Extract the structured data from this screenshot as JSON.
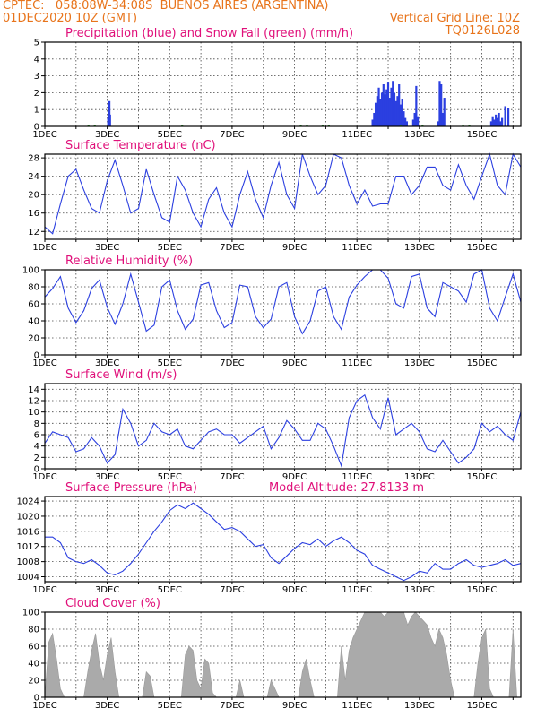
{
  "header": {
    "line1": "CPTEC:   058:08W-34:08S  BUENOS AIRES (ARGENTINA)",
    "line2_left": "01DEC2020 10Z (GMT)",
    "line2_right": "Vertical Grid Line: 10Z",
    "code": "TQ0126L028"
  },
  "colors": {
    "header": "#e8741b",
    "panel_title": "#e0107a",
    "series": "#2b3fe0",
    "snow": "#2ca02c",
    "cloud": "#aaaaaa"
  },
  "day_labels": [
    "1DEC",
    "3DEC",
    "5DEC",
    "7DEC",
    "9DEC",
    "11DEC",
    "13DEC",
    "15DEC"
  ],
  "chart_data": [
    {
      "type": "bar",
      "title": "Precipitation (blue) and Snow Fall (green) (mm/h)",
      "ylim": [
        0,
        5
      ],
      "yticks": [
        0,
        1,
        2,
        3,
        4,
        5
      ],
      "x_unit": "days since 01DEC2020 10Z",
      "series": [
        {
          "name": "Precipitation",
          "color": "#2b3fe0",
          "points": [
            [
              2.03,
              0.5
            ],
            [
              2.05,
              0.9
            ],
            [
              2.07,
              1.5
            ],
            [
              2.09,
              0.7
            ],
            [
              10.5,
              0.4
            ],
            [
              10.55,
              0.8
            ],
            [
              10.6,
              1.4
            ],
            [
              10.65,
              1.8
            ],
            [
              10.7,
              2.3
            ],
            [
              10.75,
              1.6
            ],
            [
              10.8,
              2.0
            ],
            [
              10.85,
              2.5
            ],
            [
              10.9,
              1.9
            ],
            [
              10.95,
              2.2
            ],
            [
              11.0,
              2.6
            ],
            [
              11.05,
              1.7
            ],
            [
              11.1,
              2.3
            ],
            [
              11.15,
              2.7
            ],
            [
              11.2,
              2.0
            ],
            [
              11.25,
              1.5
            ],
            [
              11.3,
              1.8
            ],
            [
              11.35,
              2.5
            ],
            [
              11.4,
              1.3
            ],
            [
              11.45,
              1.6
            ],
            [
              11.5,
              0.9
            ],
            [
              11.55,
              0.5
            ],
            [
              11.6,
              0.3
            ],
            [
              11.8,
              0.4
            ],
            [
              11.85,
              0.8
            ],
            [
              11.9,
              2.4
            ],
            [
              11.95,
              0.6
            ],
            [
              12.6,
              0.3
            ],
            [
              12.65,
              2.7
            ],
            [
              12.7,
              2.5
            ],
            [
              12.75,
              0.8
            ],
            [
              12.8,
              1.7
            ],
            [
              14.3,
              0.3
            ],
            [
              14.35,
              0.6
            ],
            [
              14.4,
              0.4
            ],
            [
              14.45,
              0.7
            ],
            [
              14.5,
              0.5
            ],
            [
              14.55,
              0.8
            ],
            [
              14.6,
              0.3
            ],
            [
              14.65,
              0.5
            ],
            [
              14.75,
              1.2
            ],
            [
              14.85,
              1.1
            ]
          ]
        },
        {
          "name": "Snow Fall",
          "color": "#2ca02c",
          "points": [
            [
              1.4,
              0.05
            ],
            [
              1.6,
              0.05
            ],
            [
              4.4,
              0.05
            ],
            [
              8.2,
              0.05
            ],
            [
              8.4,
              0.05
            ],
            [
              8.9,
              0.05
            ],
            [
              9.1,
              0.05
            ],
            [
              11.4,
              0.05
            ],
            [
              12.1,
              0.05
            ],
            [
              13.4,
              0.05
            ],
            [
              13.6,
              0.05
            ]
          ]
        }
      ]
    },
    {
      "type": "line",
      "title": "Surface Temperature (nC)",
      "ylim": [
        10.3,
        28.8
      ],
      "yticks": [
        12,
        16,
        20,
        24,
        28
      ],
      "x": [
        0,
        0.25,
        0.5,
        0.75,
        1,
        1.25,
        1.5,
        1.75,
        2,
        2.25,
        2.5,
        2.75,
        3,
        3.25,
        3.5,
        3.75,
        4,
        4.25,
        4.5,
        4.75,
        5,
        5.25,
        5.5,
        5.75,
        6,
        6.25,
        6.5,
        6.75,
        7,
        7.25,
        7.5,
        7.75,
        8,
        8.25,
        8.5,
        8.75,
        9,
        9.25,
        9.5,
        9.75,
        10,
        10.25,
        10.5,
        10.75,
        11,
        11.25,
        11.5,
        11.75,
        12,
        12.25,
        12.5,
        12.75,
        13,
        13.25,
        13.5,
        13.75,
        14,
        14.25,
        14.5,
        14.75,
        15,
        15.25
      ],
      "values": [
        13,
        11.5,
        18,
        24,
        25.5,
        21,
        17,
        16,
        23,
        27.5,
        22,
        16,
        17,
        25.5,
        20,
        15,
        14,
        24,
        21,
        16,
        13,
        19,
        21.5,
        16,
        13,
        20,
        25,
        19,
        15,
        22,
        27,
        20,
        17,
        28.8,
        24,
        20,
        22,
        28.8,
        28,
        22,
        18,
        21,
        17.5,
        18,
        18,
        24,
        24,
        20,
        22,
        26,
        26,
        22,
        21,
        26.5,
        22,
        19,
        24,
        28.8,
        22,
        20,
        28.8,
        26
      ]
    },
    {
      "type": "line",
      "title": "Relative Humidity (%)",
      "ylim": [
        0,
        100
      ],
      "yticks": [
        0,
        20,
        40,
        60,
        80,
        100
      ],
      "x": [
        0,
        0.25,
        0.5,
        0.75,
        1,
        1.25,
        1.5,
        1.75,
        2,
        2.25,
        2.5,
        2.75,
        3,
        3.25,
        3.5,
        3.75,
        4,
        4.25,
        4.5,
        4.75,
        5,
        5.25,
        5.5,
        5.75,
        6,
        6.25,
        6.5,
        6.75,
        7,
        7.25,
        7.5,
        7.75,
        8,
        8.25,
        8.5,
        8.75,
        9,
        9.25,
        9.5,
        9.75,
        10,
        10.25,
        10.5,
        10.75,
        11,
        11.25,
        11.5,
        11.75,
        12,
        12.25,
        12.5,
        12.75,
        13,
        13.25,
        13.5,
        13.75,
        14,
        14.25,
        14.5,
        14.75,
        15,
        15.25
      ],
      "values": [
        68,
        78,
        92,
        55,
        38,
        52,
        78,
        88,
        56,
        36,
        60,
        95,
        62,
        28,
        35,
        80,
        88,
        52,
        30,
        42,
        82,
        85,
        52,
        32,
        38,
        82,
        80,
        45,
        32,
        42,
        80,
        85,
        45,
        25,
        40,
        75,
        80,
        45,
        30,
        68,
        82,
        92,
        100,
        100,
        90,
        60,
        55,
        92,
        95,
        55,
        45,
        85,
        80,
        75,
        62,
        95,
        100,
        55,
        40,
        68,
        95,
        62
      ]
    },
    {
      "type": "line",
      "title": "Surface Wind (m/s)",
      "ylim": [
        0,
        15
      ],
      "yticks": [
        0,
        2,
        4,
        6,
        8,
        10,
        12,
        14
      ],
      "x": [
        0,
        0.25,
        0.5,
        0.75,
        1,
        1.25,
        1.5,
        1.75,
        2,
        2.25,
        2.5,
        2.75,
        3,
        3.25,
        3.5,
        3.75,
        4,
        4.25,
        4.5,
        4.75,
        5,
        5.25,
        5.5,
        5.75,
        6,
        6.25,
        6.5,
        6.75,
        7,
        7.25,
        7.5,
        7.75,
        8,
        8.25,
        8.5,
        8.75,
        9,
        9.25,
        9.5,
        9.75,
        10,
        10.25,
        10.5,
        10.75,
        11,
        11.25,
        11.5,
        11.75,
        12,
        12.25,
        12.5,
        12.75,
        13,
        13.25,
        13.5,
        13.75,
        14,
        14.25,
        14.5,
        14.75,
        15,
        15.25
      ],
      "values": [
        4.5,
        6.5,
        6,
        5.5,
        3,
        3.5,
        5.5,
        4,
        1,
        2.5,
        10.5,
        8,
        4,
        5,
        8,
        6.5,
        6,
        7,
        4,
        3.5,
        5,
        6.5,
        7,
        6,
        6,
        4.5,
        5.5,
        6.5,
        7.5,
        3.5,
        5.5,
        8.5,
        7,
        5,
        5,
        8,
        7,
        4,
        0.5,
        9,
        12,
        13,
        9,
        7,
        12.5,
        6,
        7,
        8,
        6.5,
        3.5,
        3,
        5,
        3,
        1,
        2,
        3.5,
        8,
        6.5,
        7.5,
        6,
        5,
        10
      ]
    },
    {
      "type": "line",
      "title": "Surface Pressure (hPa)",
      "annotation": "Model Altitude: 27.8133 m",
      "ylim": [
        1002.7,
        1025.2
      ],
      "yticks": [
        1004,
        1008,
        1012,
        1016,
        1020,
        1024
      ],
      "x": [
        0,
        0.25,
        0.5,
        0.75,
        1,
        1.25,
        1.5,
        1.75,
        2,
        2.25,
        2.5,
        2.75,
        3,
        3.25,
        3.5,
        3.75,
        4,
        4.25,
        4.5,
        4.75,
        5,
        5.25,
        5.5,
        5.75,
        6,
        6.25,
        6.5,
        6.75,
        7,
        7.25,
        7.5,
        7.75,
        8,
        8.25,
        8.5,
        8.75,
        9,
        9.25,
        9.5,
        9.75,
        10,
        10.25,
        10.5,
        10.75,
        11,
        11.25,
        11.5,
        11.75,
        12,
        12.25,
        12.5,
        12.75,
        13,
        13.25,
        13.5,
        13.75,
        14,
        14.25,
        14.5,
        14.75,
        15,
        15.25
      ],
      "values": [
        1014.5,
        1014.5,
        1013,
        1009,
        1008,
        1007.5,
        1008.5,
        1007,
        1005,
        1004.5,
        1005.5,
        1007.5,
        1010,
        1013,
        1016,
        1018.5,
        1021.5,
        1023,
        1022,
        1023.5,
        1022,
        1020.5,
        1018.5,
        1016.5,
        1017,
        1016,
        1014,
        1012,
        1012.5,
        1009,
        1007.5,
        1009.5,
        1011.5,
        1013,
        1012.5,
        1014,
        1012,
        1013.5,
        1014.5,
        1013,
        1011,
        1010,
        1007,
        1006,
        1005,
        1004,
        1003,
        1004,
        1005.5,
        1005,
        1007.5,
        1006,
        1006,
        1007.5,
        1008.5,
        1007,
        1006.5,
        1007,
        1007.5,
        1008.5,
        1007,
        1007.5
      ]
    },
    {
      "type": "area",
      "title": "Cloud Cover (%)",
      "ylim": [
        0,
        100
      ],
      "yticks": [
        0,
        20,
        40,
        60,
        80,
        100
      ],
      "x": [
        0,
        0.125,
        0.25,
        0.375,
        0.5,
        0.625,
        0.75,
        0.875,
        1,
        1.125,
        1.25,
        1.375,
        1.5,
        1.625,
        1.75,
        1.875,
        2,
        2.125,
        2.25,
        2.375,
        2.5,
        2.625,
        2.75,
        2.875,
        3,
        3.125,
        3.25,
        3.375,
        3.5,
        3.625,
        3.75,
        3.875,
        4,
        4.125,
        4.25,
        4.375,
        4.5,
        4.625,
        4.75,
        4.875,
        5,
        5.125,
        5.25,
        5.375,
        5.5,
        5.625,
        5.75,
        5.875,
        6,
        6.125,
        6.25,
        6.375,
        6.5,
        6.625,
        6.75,
        6.875,
        7,
        7.125,
        7.25,
        7.375,
        7.5,
        7.625,
        7.75,
        7.875,
        8,
        8.125,
        8.25,
        8.375,
        8.5,
        8.625,
        8.75,
        8.875,
        9,
        9.125,
        9.25,
        9.375,
        9.5,
        9.625,
        9.75,
        9.875,
        10,
        10.125,
        10.25,
        10.375,
        10.5,
        10.625,
        10.75,
        10.875,
        11,
        11.125,
        11.25,
        11.375,
        11.5,
        11.625,
        11.75,
        11.875,
        12,
        12.125,
        12.25,
        12.375,
        12.5,
        12.625,
        12.75,
        12.875,
        13,
        13.125,
        13.25,
        13.375,
        13.5,
        13.625,
        13.75,
        13.875,
        14,
        14.125,
        14.25,
        14.375,
        14.5,
        14.625,
        14.75,
        14.875,
        15,
        15.125,
        15.25
      ],
      "values": [
        0,
        65,
        75,
        45,
        10,
        0,
        0,
        0,
        0,
        0,
        0,
        30,
        55,
        75,
        40,
        20,
        50,
        70,
        30,
        0,
        0,
        0,
        0,
        0,
        0,
        0,
        30,
        25,
        0,
        0,
        0,
        0,
        0,
        0,
        0,
        0,
        50,
        60,
        55,
        20,
        10,
        45,
        40,
        5,
        0,
        0,
        0,
        0,
        0,
        0,
        20,
        0,
        0,
        0,
        0,
        0,
        0,
        0,
        20,
        10,
        0,
        0,
        0,
        0,
        0,
        0,
        30,
        45,
        20,
        0,
        0,
        0,
        0,
        0,
        0,
        0,
        60,
        20,
        55,
        70,
        80,
        90,
        100,
        100,
        100,
        100,
        100,
        95,
        100,
        100,
        100,
        100,
        100,
        85,
        95,
        100,
        95,
        90,
        85,
        70,
        60,
        80,
        70,
        50,
        20,
        0,
        0,
        0,
        0,
        0,
        0,
        40,
        70,
        80,
        10,
        0,
        0,
        0,
        0,
        0,
        80,
        0,
        0
      ]
    }
  ]
}
